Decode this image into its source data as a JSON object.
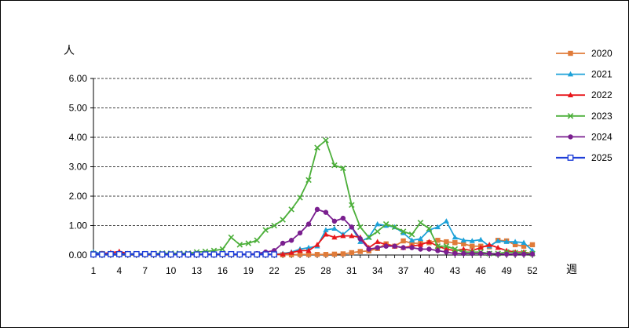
{
  "chart_data": {
    "type": "line",
    "title": "",
    "ylabel": "人",
    "xlabel": "週",
    "ylim": [
      0,
      6
    ],
    "yticks": [
      "0.00",
      "1.00",
      "2.00",
      "3.00",
      "4.00",
      "5.00",
      "6.00"
    ],
    "xlim": [
      1,
      52
    ],
    "xticks": [
      "1",
      "4",
      "7",
      "10",
      "13",
      "16",
      "19",
      "22",
      "25",
      "28",
      "31",
      "34",
      "37",
      "40",
      "43",
      "46",
      "49",
      "52"
    ],
    "grid": "horizontal dashed",
    "legend_position": "right",
    "series": [
      {
        "name": "2020",
        "color": "#E07B39",
        "marker": "square",
        "x": [
          1,
          2,
          3,
          4,
          5,
          6,
          7,
          8,
          9,
          10,
          11,
          12,
          13,
          14,
          15,
          16,
          17,
          18,
          19,
          20,
          21,
          22,
          23,
          24,
          25,
          26,
          27,
          28,
          29,
          30,
          31,
          32,
          33,
          34,
          35,
          36,
          37,
          38,
          39,
          40,
          41,
          42,
          43,
          44,
          45,
          46,
          47,
          48,
          49,
          50,
          51,
          52
        ],
        "values": [
          0.05,
          0.05,
          0.05,
          0.05,
          0.04,
          0.04,
          0.03,
          0.03,
          0.03,
          0.02,
          0.02,
          0.02,
          0.02,
          0.02,
          0.02,
          0.02,
          0.02,
          0.02,
          0.01,
          0.01,
          0.01,
          0.01,
          0.01,
          0.01,
          0.02,
          0.02,
          0.02,
          0.02,
          0.03,
          0.04,
          0.08,
          0.12,
          0.14,
          0.22,
          0.38,
          0.3,
          0.48,
          0.4,
          0.4,
          0.42,
          0.5,
          0.45,
          0.42,
          0.38,
          0.3,
          0.3,
          0.28,
          0.5,
          0.48,
          0.35,
          0.3,
          0.35
        ]
      },
      {
        "name": "2021",
        "color": "#1DA1D8",
        "marker": "triangle",
        "x": [
          1,
          2,
          3,
          4,
          5,
          6,
          7,
          8,
          9,
          10,
          11,
          12,
          13,
          14,
          15,
          16,
          17,
          18,
          19,
          20,
          21,
          22,
          23,
          24,
          25,
          26,
          27,
          28,
          29,
          30,
          31,
          32,
          33,
          34,
          35,
          36,
          37,
          38,
          39,
          40,
          41,
          42,
          43,
          44,
          45,
          46,
          47,
          48,
          49,
          50,
          51,
          52
        ],
        "values": [
          0.1,
          0.05,
          0.04,
          0.04,
          0.04,
          0.03,
          0.03,
          0.03,
          0.03,
          0.03,
          0.03,
          0.03,
          0.03,
          0.03,
          0.03,
          0.03,
          0.03,
          0.03,
          0.03,
          0.03,
          0.03,
          0.03,
          0.05,
          0.1,
          0.2,
          0.25,
          0.3,
          0.85,
          0.9,
          0.7,
          0.95,
          0.45,
          0.6,
          1.05,
          1.0,
          0.95,
          0.75,
          0.5,
          0.55,
          0.85,
          0.95,
          1.15,
          0.6,
          0.5,
          0.48,
          0.52,
          0.3,
          0.48,
          0.45,
          0.45,
          0.42,
          0.15
        ]
      },
      {
        "name": "2022",
        "color": "#E8161B",
        "marker": "triangle",
        "x": [
          1,
          2,
          3,
          4,
          5,
          6,
          7,
          8,
          9,
          10,
          11,
          12,
          13,
          14,
          15,
          16,
          17,
          18,
          19,
          20,
          21,
          22,
          23,
          24,
          25,
          26,
          27,
          28,
          29,
          30,
          31,
          32,
          33,
          34,
          35,
          36,
          37,
          38,
          39,
          40,
          41,
          42,
          43,
          44,
          45,
          46,
          47,
          48,
          49,
          50,
          51,
          52
        ],
        "values": [
          0.03,
          0.05,
          0.08,
          0.12,
          0.05,
          0.03,
          0.02,
          0.02,
          0.02,
          0.02,
          0.02,
          0.02,
          0.02,
          0.02,
          0.02,
          0.02,
          0.02,
          0.02,
          0.02,
          0.02,
          0.02,
          0.02,
          0.03,
          0.08,
          0.15,
          0.15,
          0.35,
          0.7,
          0.6,
          0.65,
          0.65,
          0.6,
          0.25,
          0.45,
          0.35,
          0.3,
          0.25,
          0.3,
          0.35,
          0.45,
          0.3,
          0.2,
          0.15,
          0.2,
          0.15,
          0.25,
          0.35,
          0.25,
          0.15,
          0.1,
          0.1,
          0.05
        ]
      },
      {
        "name": "2023",
        "color": "#4CAF3A",
        "marker": "x",
        "x": [
          1,
          2,
          3,
          4,
          5,
          6,
          7,
          8,
          9,
          10,
          11,
          12,
          13,
          14,
          15,
          16,
          17,
          18,
          19,
          20,
          21,
          22,
          23,
          24,
          25,
          26,
          27,
          28,
          29,
          30,
          31,
          32,
          33,
          34,
          35,
          36,
          37,
          38,
          39,
          40,
          41,
          42,
          43,
          44,
          45,
          46,
          47,
          48,
          49,
          50,
          51,
          52
        ],
        "values": [
          0.05,
          0.04,
          0.04,
          0.04,
          0.04,
          0.04,
          0.04,
          0.05,
          0.06,
          0.06,
          0.06,
          0.06,
          0.1,
          0.12,
          0.15,
          0.2,
          0.6,
          0.35,
          0.4,
          0.5,
          0.85,
          1.0,
          1.2,
          1.55,
          1.95,
          2.55,
          3.65,
          3.9,
          3.05,
          2.95,
          1.7,
          0.95,
          0.6,
          0.8,
          1.05,
          0.95,
          0.8,
          0.7,
          1.1,
          0.9,
          0.3,
          0.3,
          0.2,
          0.1,
          0.1,
          0.1,
          0.05,
          0.05,
          0.1,
          0.08,
          0.08,
          0.05
        ]
      },
      {
        "name": "2024",
        "color": "#7A1F8F",
        "marker": "circle",
        "x": [
          1,
          2,
          3,
          4,
          5,
          6,
          7,
          8,
          9,
          10,
          11,
          12,
          13,
          14,
          15,
          16,
          17,
          18,
          19,
          20,
          21,
          22,
          23,
          24,
          25,
          26,
          27,
          28,
          29,
          30,
          31,
          32,
          33,
          34,
          35,
          36,
          37,
          38,
          39,
          40,
          41,
          42,
          43,
          44,
          45,
          46,
          47,
          48,
          49,
          50,
          51,
          52
        ],
        "values": [
          0.04,
          0.04,
          0.04,
          0.04,
          0.03,
          0.03,
          0.03,
          0.03,
          0.03,
          0.03,
          0.03,
          0.03,
          0.03,
          0.03,
          0.03,
          0.03,
          0.03,
          0.03,
          0.03,
          0.05,
          0.1,
          0.15,
          0.4,
          0.5,
          0.75,
          1.05,
          1.55,
          1.45,
          1.15,
          1.25,
          0.95,
          0.55,
          0.2,
          0.25,
          0.3,
          0.3,
          0.25,
          0.25,
          0.2,
          0.2,
          0.15,
          0.1,
          0.05,
          0.05,
          0.05,
          0.05,
          0.05,
          0.03,
          0.03,
          0.03,
          0.03,
          0.03
        ]
      },
      {
        "name": "2025",
        "color": "#1F3FD8",
        "marker": "square-open",
        "x": [
          1,
          2,
          3,
          4,
          5,
          6,
          7,
          8,
          9,
          10,
          11,
          12,
          13,
          14,
          15,
          16,
          17,
          18,
          19,
          20,
          21,
          22
        ],
        "values": [
          0.02,
          0.02,
          0.03,
          0.03,
          0.03,
          0.03,
          0.03,
          0.03,
          0.02,
          0.02,
          0.02,
          0.02,
          0.02,
          0.02,
          0.02,
          0.03,
          0.03,
          0.02,
          0.02,
          0.02,
          0.02,
          0.02
        ]
      }
    ]
  }
}
